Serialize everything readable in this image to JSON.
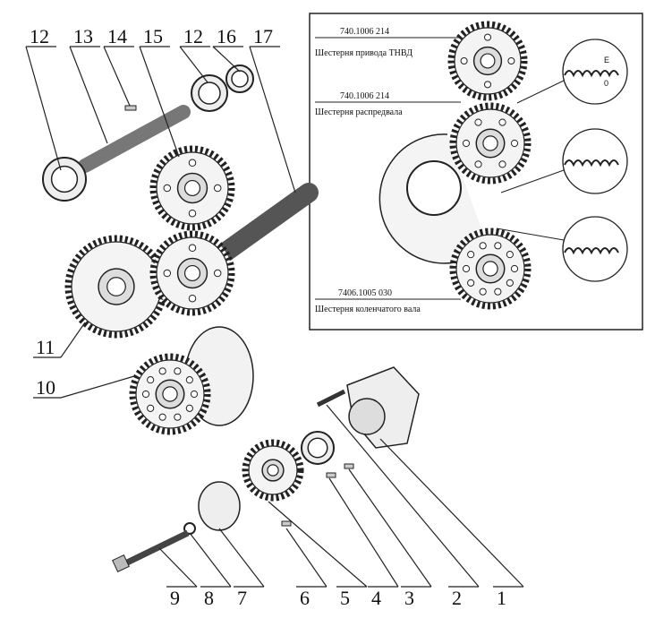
{
  "callouts": [
    "12",
    "13",
    "14",
    "15",
    "12",
    "16",
    "17",
    "11",
    "10",
    "9",
    "8",
    "7",
    "6",
    "5",
    "4",
    "3",
    "2",
    "1"
  ],
  "inset": {
    "gears": [
      {
        "part_number": "740.1006 214",
        "name": "Шестерня привода ТНВД"
      },
      {
        "part_number": "740.1006 214",
        "name": "Шестерня распредвала"
      },
      {
        "part_number": "7406.1005 030",
        "name": "Шестерня коленчатого вала"
      }
    ],
    "detail_marks": [
      "E",
      "0"
    ]
  }
}
